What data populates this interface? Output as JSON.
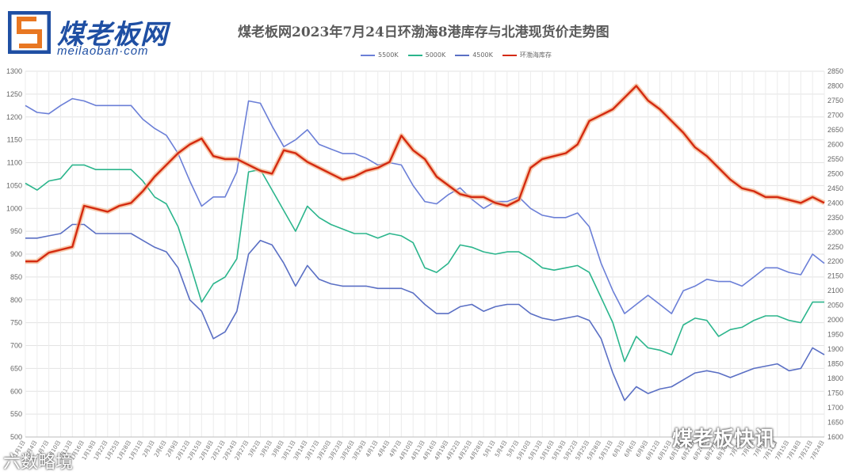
{
  "brand": {
    "name_cn": "煤老板网",
    "name_en": "meilaoban·com"
  },
  "watermarks": {
    "bottom_right": "煤老板快讯",
    "bottom_left": "六数略境"
  },
  "chart_data": {
    "type": "line",
    "title": "煤老板网2023年7月24日环渤海8港库存与北港现货价走势图",
    "left_axis": {
      "ylim": [
        500,
        1300
      ],
      "ticks": [
        500,
        550,
        600,
        650,
        700,
        750,
        800,
        850,
        900,
        950,
        1000,
        1050,
        1100,
        1150,
        1200,
        1250,
        1300
      ]
    },
    "right_axis": {
      "ylim": [
        1600,
        2850
      ],
      "ticks": [
        1600,
        1650,
        1700,
        1750,
        1800,
        1850,
        1900,
        1950,
        2000,
        2050,
        2100,
        2150,
        2200,
        2250,
        2300,
        2350,
        2400,
        2450,
        2500,
        2550,
        2600,
        2650,
        2700,
        2750,
        2800,
        2850
      ]
    },
    "grid": true,
    "legend_placement": "top-center",
    "colors": {
      "5500K": "#6b7fd7",
      "5000K": "#2bb58c",
      "4500K": "#5a6fc4",
      "inventory": "#d42a10"
    },
    "x_labels": [
      "1月1日",
      "1月4日",
      "1月7日",
      "1月10日",
      "1月13日",
      "1月16日",
      "1月19日",
      "1月22日",
      "1月25日",
      "1月28日",
      "1月31日",
      "2月3日",
      "2月6日",
      "2月9日",
      "2月12日",
      "2月15日",
      "2月18日",
      "2月21日",
      "2月24日",
      "2月27日",
      "3月2日",
      "3月5日",
      "3月8日",
      "3月11日",
      "3月14日",
      "3月17日",
      "3月20日",
      "3月23日",
      "3月26日",
      "3月29日",
      "4月1日",
      "4月4日",
      "4月7日",
      "4月10日",
      "4月13日",
      "4月16日",
      "4月19日",
      "4月22日",
      "4月25日",
      "4月28日",
      "5月1日",
      "5月4日",
      "5月7日",
      "5月10日",
      "5月13日",
      "5月16日",
      "5月19日",
      "5月22日",
      "5月25日",
      "5月28日",
      "5月31日",
      "6月3日",
      "6月6日",
      "6月9日",
      "6月12日",
      "6月15日",
      "6月18日",
      "6月21日",
      "6月24日",
      "6月27日",
      "6月30日",
      "7月3日",
      "7月6日",
      "7月9日",
      "7月12日",
      "7月15日",
      "7月18日",
      "7月21日",
      "7月24日"
    ],
    "series": [
      {
        "name": "5500K",
        "axis": "left",
        "color": "#6b7fd7",
        "values": [
          1225,
          1210,
          1207,
          1225,
          1240,
          1235,
          1225,
          1225,
          1225,
          1225,
          1195,
          1175,
          1160,
          1120,
          1060,
          1005,
          1025,
          1025,
          1080,
          1235,
          1230,
          1180,
          1135,
          1150,
          1172,
          1140,
          1130,
          1120,
          1120,
          1110,
          1095,
          1100,
          1095,
          1050,
          1015,
          1010,
          1030,
          1045,
          1020,
          1000,
          1015,
          1015,
          1025,
          1000,
          985,
          980,
          980,
          990,
          960,
          880,
          820,
          770,
          790,
          810,
          790,
          770,
          820,
          830,
          845,
          840,
          840,
          830,
          850,
          870,
          870,
          860,
          855,
          900,
          880
        ]
      },
      {
        "name": "5000K",
        "axis": "left",
        "color": "#2bb58c",
        "values": [
          1055,
          1040,
          1060,
          1065,
          1095,
          1095,
          1085,
          1085,
          1085,
          1085,
          1060,
          1025,
          1010,
          960,
          880,
          795,
          835,
          850,
          890,
          1080,
          1085,
          1040,
          995,
          950,
          1005,
          980,
          965,
          955,
          945,
          945,
          935,
          945,
          940,
          925,
          870,
          860,
          880,
          920,
          915,
          905,
          900,
          905,
          905,
          890,
          870,
          865,
          870,
          875,
          860,
          805,
          750,
          665,
          720,
          695,
          690,
          680,
          745,
          760,
          755,
          720,
          735,
          740,
          755,
          765,
          765,
          755,
          750,
          795,
          795
        ]
      },
      {
        "name": "4500K",
        "axis": "left",
        "color": "#5a6fc4",
        "values": [
          935,
          935,
          940,
          945,
          965,
          965,
          945,
          945,
          945,
          945,
          930,
          915,
          905,
          870,
          800,
          775,
          715,
          730,
          775,
          900,
          930,
          920,
          880,
          830,
          875,
          845,
          835,
          830,
          830,
          830,
          825,
          825,
          825,
          815,
          790,
          770,
          770,
          785,
          790,
          775,
          785,
          790,
          790,
          770,
          760,
          755,
          760,
          765,
          755,
          715,
          640,
          580,
          610,
          595,
          605,
          610,
          625,
          640,
          645,
          640,
          630,
          640,
          650,
          655,
          660,
          645,
          650,
          695,
          680
        ]
      },
      {
        "name": "环渤海库存",
        "axis": "right",
        "color": "#d42a10",
        "values": [
          2200,
          2200,
          2230,
          2240,
          2250,
          2390,
          2380,
          2370,
          2390,
          2400,
          2440,
          2490,
          2530,
          2570,
          2600,
          2620,
          2560,
          2550,
          2550,
          2530,
          2510,
          2500,
          2580,
          2570,
          2540,
          2520,
          2500,
          2480,
          2490,
          2510,
          2520,
          2540,
          2630,
          2580,
          2550,
          2490,
          2460,
          2430,
          2420,
          2420,
          2400,
          2390,
          2410,
          2520,
          2550,
          2560,
          2570,
          2600,
          2680,
          2700,
          2720,
          2760,
          2800,
          2750,
          2720,
          2680,
          2640,
          2590,
          2560,
          2520,
          2480,
          2450,
          2440,
          2420,
          2420,
          2410,
          2400,
          2420,
          2400
        ]
      }
    ]
  }
}
